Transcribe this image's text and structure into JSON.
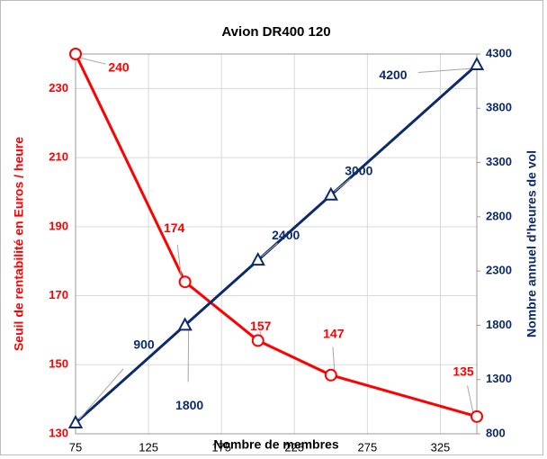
{
  "chart_data": {
    "type": "line",
    "title": "Avion DR400 120",
    "x_label": "Nombre de membres",
    "y_label": "Seuil de rentabilité en Euros / heure",
    "y2_label": "Nombre annuel d'heures de vol",
    "x": [
      75,
      150,
      200,
      250,
      350
    ],
    "series": [
      {
        "name": "Seuil de rentabilité en Euros / heure",
        "color": "#ff0000",
        "marker": "circle",
        "values": [
          240,
          174,
          157,
          147,
          135
        ]
      },
      {
        "name": "Nombre annuel d'heures de vol",
        "color": "#0d2a6b",
        "marker": "triangle",
        "axis": "y2",
        "values": [
          900,
          1800,
          2400,
          3000,
          4200
        ]
      }
    ],
    "xlim": [
      75,
      350
    ],
    "xticks": [
      75,
      125,
      175,
      225,
      275,
      325
    ],
    "ylim": [
      130,
      240
    ],
    "yticks": [
      130,
      150,
      170,
      190,
      210,
      230
    ],
    "y2lim": [
      800,
      4300
    ],
    "y2ticks": [
      800,
      1300,
      1800,
      2300,
      2800,
      3300,
      3800,
      4300
    ],
    "grid": true
  }
}
